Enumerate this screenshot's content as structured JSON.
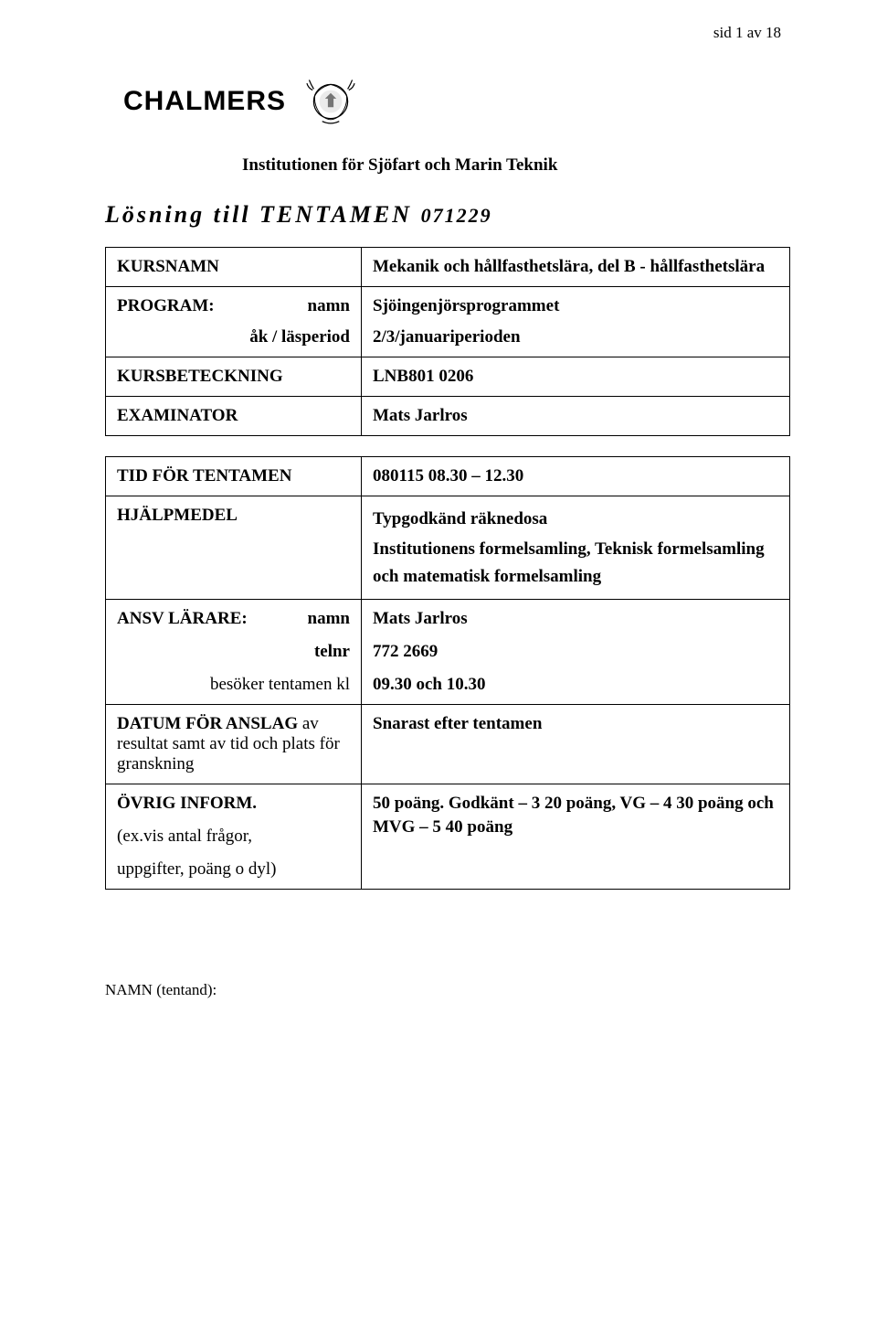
{
  "page_number": "sid 1 av 18",
  "logo_text": "CHALMERS",
  "institution": "Institutionen för Sjöfart och Marin Teknik",
  "title_prefix": "Lösning till TENTAMEN",
  "title_code": "071229",
  "table1": {
    "r1": {
      "label": "KURSNAMN",
      "value": "Mekanik och hållfasthetslära, del B - hållfasthetslära"
    },
    "r2": {
      "l1_left": "PROGRAM:",
      "l1_right": "namn",
      "l1_val": "Sjöingenjörsprogrammet",
      "l2_left": "",
      "l2_right": "åk  /  läsperiod",
      "l2_val": "2/3/januariperioden"
    },
    "r3": {
      "label": "KURSBETECKNING",
      "value": "LNB801 0206"
    },
    "r4": {
      "label": "EXAMINATOR",
      "value": "Mats Jarlros"
    }
  },
  "table2": {
    "r1": {
      "label": "TID FÖR TENTAMEN",
      "value": "080115 08.30 – 12.30"
    },
    "r2": {
      "label": "HJÄLPMEDEL",
      "value": "Typgodkänd räknedosa\nInstitutionens formelsamling, Teknisk formelsamling och matematisk formelsamling"
    },
    "r3": {
      "l1_left": "ANSV LÄRARE:",
      "l1_right": "namn",
      "l1_val": "Mats Jarlros",
      "l2_right": "telnr",
      "l2_val": "772 2669",
      "l3_right": "besöker tentamen kl",
      "l3_val": "09.30 och 10.30"
    },
    "r4": {
      "label": "DATUM FÖR ANSLAG av resultat samt av tid och plats för granskning",
      "value": "Snarast efter tentamen"
    },
    "r5": {
      "l1": "ÖVRIG INFORM.",
      "l2": "(ex.vis  antal frågor,",
      "l3": "uppgifter, poäng o dyl)",
      "v1": "50 poäng. Godkänt – 3 20 poäng, VG – 4 30 poäng och",
      "v2": "MVG – 5 40 poäng"
    }
  },
  "footer": "NAMN (tentand):"
}
